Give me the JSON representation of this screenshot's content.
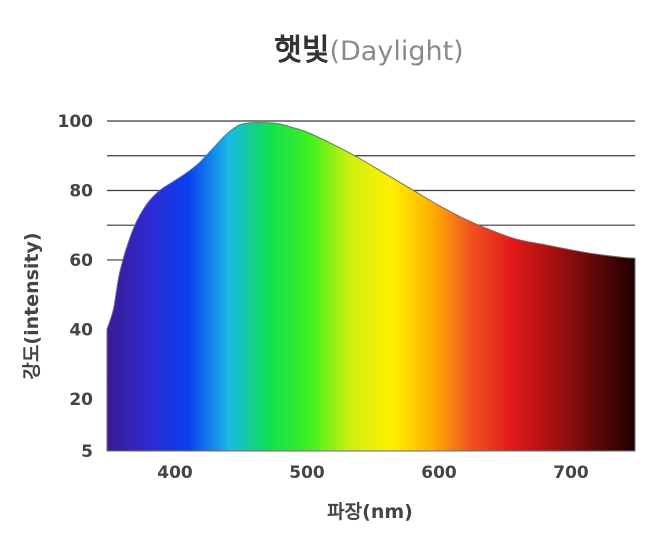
{
  "chart_data": {
    "type": "area",
    "title": "햇빛",
    "subtitle": "(Daylight)",
    "xlabel": "파장(nm)",
    "ylabel": "강도(intensity)",
    "xlim": [
      350,
      750
    ],
    "ylim": [
      5,
      100
    ],
    "y_ticks": [
      {
        "label": "100",
        "value": 100
      },
      {
        "label": "80",
        "value": 80
      },
      {
        "label": "60",
        "value": 60
      },
      {
        "label": "40",
        "value": 40
      },
      {
        "label": "20",
        "value": 20
      },
      {
        "label": "5",
        "value": 5
      }
    ],
    "x_ticks": [
      {
        "label": "400",
        "value": 400
      },
      {
        "label": "500",
        "value": 500
      },
      {
        "label": "600",
        "value": 600
      },
      {
        "label": "700",
        "value": 700
      }
    ],
    "grid": true,
    "gridlines_y": [
      100,
      90,
      80,
      70,
      60
    ],
    "fill": "visible-spectrum-gradient",
    "x": [
      350,
      355,
      360,
      370,
      380,
      390,
      400,
      410,
      420,
      430,
      440,
      450,
      460,
      470,
      480,
      490,
      500,
      520,
      540,
      560,
      580,
      600,
      620,
      640,
      660,
      680,
      700,
      720,
      740,
      750
    ],
    "values": [
      40,
      46,
      57,
      69,
      76,
      80,
      82.5,
      85,
      88,
      92,
      96,
      98.8,
      99.5,
      99.5,
      99.2,
      98.2,
      97,
      93.5,
      89.5,
      85,
      80.5,
      76,
      72,
      68.7,
      66,
      64.5,
      63,
      61.7,
      60.8,
      60.5
    ],
    "colors": {
      "spectrum_stops": [
        "#3a1a90",
        "#2f2ad0",
        "#0a3ef0",
        "#1ab8e8",
        "#10e050",
        "#3ef020",
        "#d0f010",
        "#fff000",
        "#ffb000",
        "#f05020",
        "#e01818",
        "#a81010",
        "#600808",
        "#1e0000"
      ]
    }
  }
}
